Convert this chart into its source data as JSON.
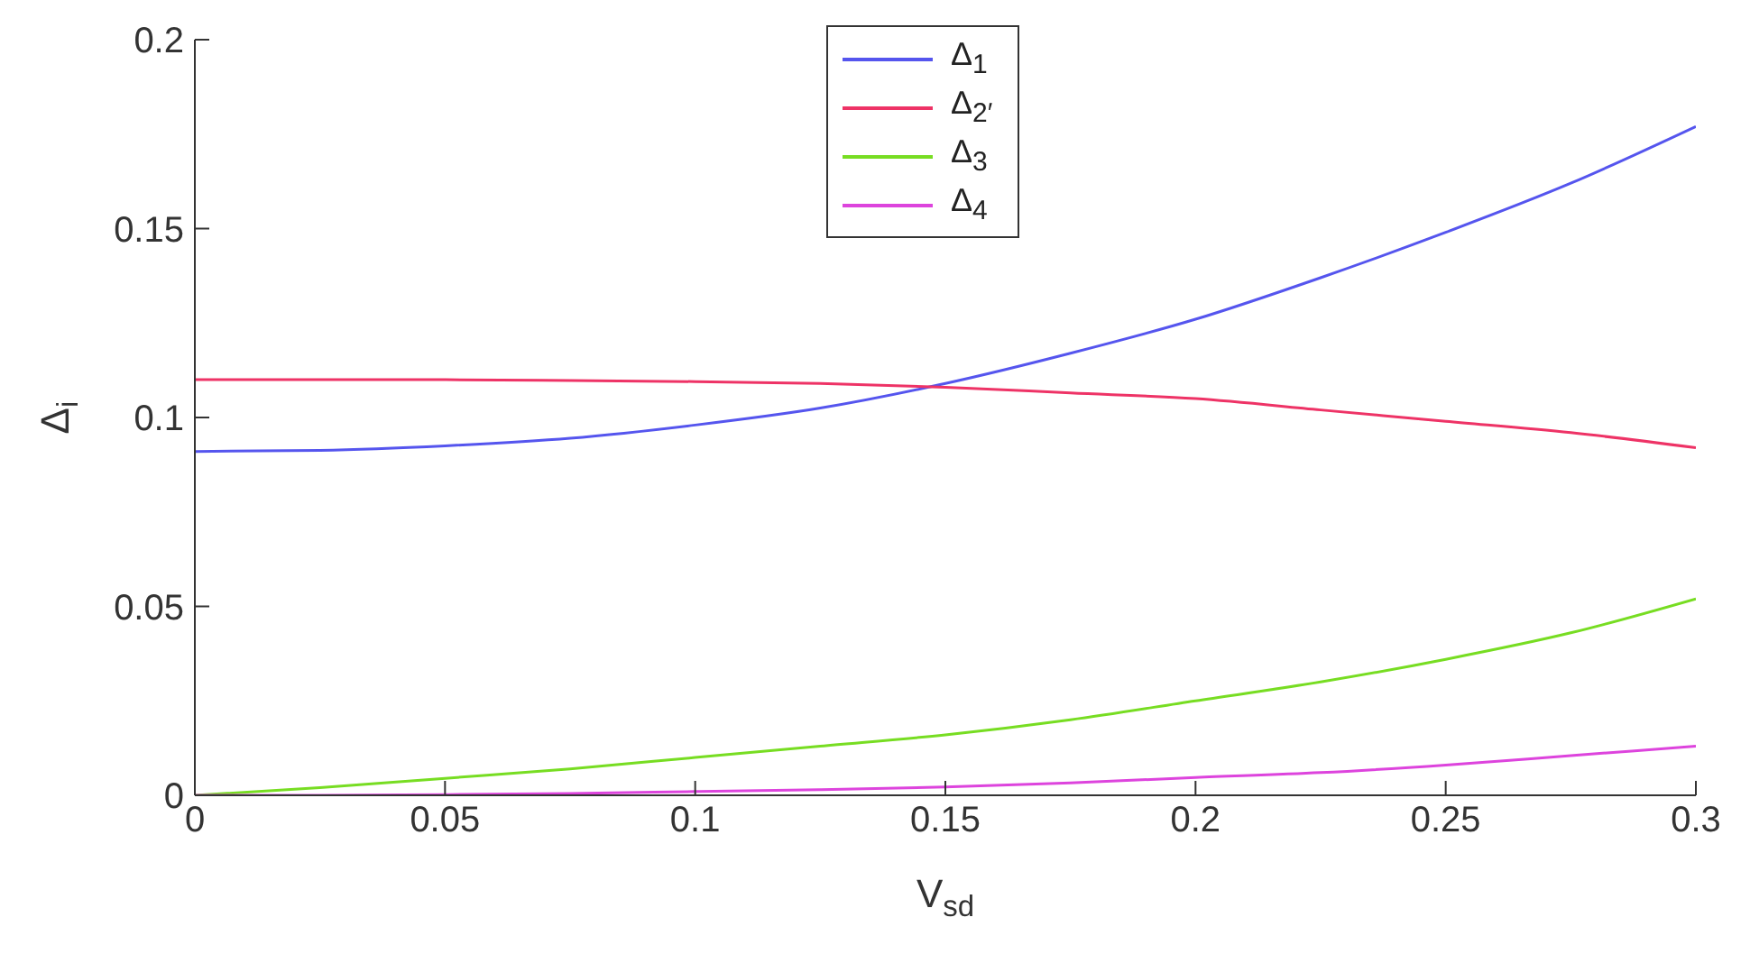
{
  "chart_data": {
    "type": "line",
    "xlabel": "V$_{sd}$",
    "ylabel": "Δ$_{i}$",
    "x": [
      0,
      0.025,
      0.05,
      0.075,
      0.1,
      0.125,
      0.15,
      0.175,
      0.2,
      0.225,
      0.25,
      0.275,
      0.3
    ],
    "series": [
      {
        "name": "Δ$_{1}$",
        "color": "#5555ee",
        "values": [
          0.091,
          0.0913,
          0.0925,
          0.0945,
          0.098,
          0.1025,
          0.109,
          0.117,
          0.126,
          0.137,
          0.149,
          0.162,
          0.177
        ]
      },
      {
        "name": "Δ$_{2′}$",
        "color": "#ee3366",
        "values": [
          0.11,
          0.11,
          0.11,
          0.1098,
          0.1095,
          0.109,
          0.108,
          0.1065,
          0.105,
          0.102,
          0.099,
          0.096,
          0.092
        ]
      },
      {
        "name": "Δ$_{3}$",
        "color": "#77dd22",
        "values": [
          0,
          0.002,
          0.0045,
          0.007,
          0.01,
          0.013,
          0.016,
          0.02,
          0.025,
          0.03,
          0.036,
          0.043,
          0.052
        ]
      },
      {
        "name": "Δ$_{4}$",
        "color": "#dd44dd",
        "values": [
          0,
          0,
          0.0002,
          0.0005,
          0.001,
          0.0015,
          0.0022,
          0.0033,
          0.0047,
          0.006,
          0.008,
          0.0105,
          0.013
        ]
      }
    ],
    "xlim": [
      0,
      0.3
    ],
    "xticks": [
      0,
      0.05,
      0.1,
      0.15,
      0.2,
      0.25,
      0.3
    ],
    "ylim": [
      0,
      0.2
    ],
    "yticks": [
      0,
      0.05,
      0.1,
      0.15,
      0.2
    ],
    "grid": false,
    "legend": "top",
    "marker": "none",
    "line_style": "solid"
  }
}
